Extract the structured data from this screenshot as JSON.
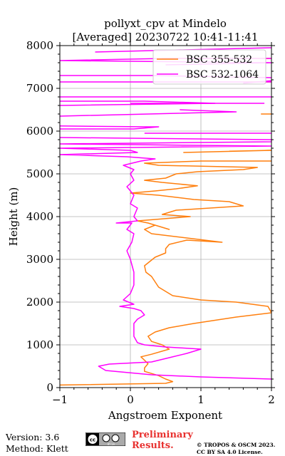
{
  "chart_data": {
    "type": "line",
    "title": "pollyxt_cpv at Mindelo",
    "subtitle": "[Averaged] 20230722 10:41-11:41",
    "xlabel": "Angstroem Exponent",
    "ylabel": "Height (m)",
    "xlim": [
      -1,
      2
    ],
    "ylim": [
      0,
      8000
    ],
    "xticks": [
      "-1",
      "0",
      "1",
      "2"
    ],
    "yticks": [
      "0",
      "1000",
      "2000",
      "3000",
      "4000",
      "5000",
      "6000",
      "7000",
      "8000"
    ],
    "grid": true,
    "legend_position": "top-right",
    "series": [
      {
        "name": "BSC 355-532",
        "color": "#ff7f0e",
        "points": [
          [
            -1.0,
            60
          ],
          [
            0.5,
            100
          ],
          [
            0.6,
            140
          ],
          [
            0.5,
            200
          ],
          [
            0.4,
            280
          ],
          [
            0.2,
            380
          ],
          [
            0.2,
            460
          ],
          [
            0.25,
            560
          ],
          [
            0.2,
            640
          ],
          [
            0.15,
            720
          ],
          [
            0.3,
            780
          ],
          [
            0.55,
            900
          ],
          [
            0.45,
            1000
          ],
          [
            0.3,
            1080
          ],
          [
            0.25,
            1200
          ],
          [
            0.35,
            1300
          ],
          [
            0.55,
            1400
          ],
          [
            0.9,
            1500
          ],
          [
            1.5,
            1650
          ],
          [
            2.0,
            1750
          ],
          [
            1.95,
            1900
          ],
          [
            1.5,
            2000
          ],
          [
            1.0,
            2050
          ],
          [
            0.6,
            2150
          ],
          [
            0.4,
            2350
          ],
          [
            0.3,
            2600
          ],
          [
            0.22,
            2700
          ],
          [
            0.2,
            2850
          ],
          [
            0.35,
            3050
          ],
          [
            0.5,
            3150
          ],
          [
            0.5,
            3250
          ],
          [
            0.55,
            3350
          ],
          [
            0.8,
            3450
          ],
          [
            1.3,
            3400
          ],
          [
            0.8,
            3500
          ],
          [
            0.3,
            3600
          ],
          [
            0.2,
            3700
          ],
          [
            0.35,
            3800
          ],
          [
            0.55,
            3700
          ],
          [
            0.25,
            3850
          ],
          [
            0.1,
            3900
          ],
          [
            0.85,
            4000
          ],
          [
            0.45,
            4050
          ],
          [
            0.65,
            4150
          ],
          [
            1.6,
            4250
          ],
          [
            1.4,
            4350
          ],
          [
            0.9,
            4400
          ],
          [
            0.4,
            4500
          ],
          [
            0.0,
            4550
          ],
          [
            0.35,
            4600
          ],
          [
            0.65,
            4650
          ],
          [
            0.95,
            4720
          ],
          [
            0.45,
            4800
          ],
          [
            0.2,
            4850
          ],
          [
            0.5,
            4900
          ],
          [
            0.65,
            5000
          ],
          [
            0.95,
            5050
          ],
          [
            1.6,
            5100
          ],
          [
            1.8,
            5150
          ],
          [
            0.4,
            5200
          ],
          [
            0.2,
            5250
          ],
          [
            1.0,
            5300
          ],
          [
            2.0,
            5300
          ]
        ],
        "segments": [
          [
            [
              0.75,
              5500
            ],
            [
              2.0,
              5550
            ],
            [
              1.4,
              5530
            ]
          ],
          [
            [
              0.45,
              7700
            ],
            [
              2.0,
              7700
            ]
          ],
          [
            [
              1.85,
              6400
            ],
            [
              2.0,
              6400
            ]
          ],
          [
            [
              1.6,
              7150
            ],
            [
              2.0,
              7150
            ]
          ]
        ]
      },
      {
        "name": "BSC 532-1064",
        "color": "#ff00ff",
        "points": [
          [
            2.0,
            200
          ],
          [
            1.0,
            250
          ],
          [
            0.3,
            300
          ],
          [
            -0.35,
            400
          ],
          [
            -0.45,
            500
          ],
          [
            -0.3,
            550
          ],
          [
            0.3,
            600
          ],
          [
            0.55,
            700
          ],
          [
            0.8,
            800
          ],
          [
            1.0,
            900
          ],
          [
            0.5,
            950
          ],
          [
            0.2,
            1000
          ],
          [
            0.1,
            1050
          ],
          [
            0.05,
            1200
          ],
          [
            0.05,
            1500
          ],
          [
            0.1,
            1600
          ],
          [
            0.2,
            1700
          ],
          [
            0.15,
            1800
          ],
          [
            0.05,
            1850
          ],
          [
            -0.15,
            1900
          ],
          [
            0.05,
            1950
          ],
          [
            -0.1,
            2050
          ],
          [
            0.0,
            2200
          ],
          [
            0.05,
            2400
          ],
          [
            0.05,
            2700
          ],
          [
            0.0,
            3000
          ],
          [
            -0.05,
            3200
          ],
          [
            0.02,
            3400
          ],
          [
            0.05,
            3600
          ],
          [
            -0.05,
            3700
          ],
          [
            0.02,
            3850
          ],
          [
            -0.2,
            3850
          ],
          [
            0.1,
            3900
          ],
          [
            0.05,
            4000
          ],
          [
            0.1,
            4200
          ],
          [
            0.0,
            4300
          ],
          [
            0.05,
            4500
          ],
          [
            -0.05,
            4700
          ],
          [
            0.05,
            4850
          ],
          [
            0.0,
            5000
          ],
          [
            0.05,
            5100
          ],
          [
            -0.1,
            5200
          ],
          [
            0.15,
            5300
          ],
          [
            0.35,
            5350
          ],
          [
            -0.05,
            5400
          ],
          [
            -1.0,
            5450
          ],
          [
            0.1,
            5500
          ],
          [
            0.0,
            5550
          ],
          [
            -1.0,
            5600
          ],
          [
            2.0,
            5650
          ],
          [
            -1.0,
            5700
          ],
          [
            2.0,
            5750
          ],
          [
            2.0,
            5800
          ],
          [
            -1.0,
            5850
          ]
        ],
        "segments": [
          [
            [
              0.2,
              5950
            ],
            [
              2.0,
              5950
            ]
          ],
          [
            [
              -1.0,
              6050
            ],
            [
              0.05,
              6050
            ],
            [
              0.4,
              6100
            ],
            [
              0.25,
              6100
            ],
            [
              -1.0,
              6120
            ]
          ],
          [
            [
              -1.0,
              6350
            ],
            [
              1.5,
              6450
            ],
            [
              0.7,
              6500
            ]
          ],
          [
            [
              -1.0,
              6600
            ],
            [
              1.2,
              6650
            ],
            [
              0.2,
              6700
            ],
            [
              -1.0,
              6700
            ]
          ],
          [
            [
              0.0,
              6650
            ],
            [
              1.9,
              6650
            ]
          ],
          [
            [
              -1.0,
              6800
            ],
            [
              2.0,
              6800
            ]
          ],
          [
            [
              -1.0,
              7150
            ],
            [
              2.0,
              7150
            ]
          ],
          [
            [
              -1.0,
              7300
            ],
            [
              0.3,
              7300
            ],
            [
              2.0,
              7250
            ]
          ],
          [
            [
              0.5,
              7550
            ],
            [
              2.0,
              7600
            ],
            [
              -1.0,
              7650
            ],
            [
              0.5,
              7700
            ],
            [
              2.0,
              7700
            ]
          ],
          [
            [
              -0.5,
              7850
            ],
            [
              2.0,
              7950
            ]
          ],
          [
            [
              1.6,
              7120
            ],
            [
              2.0,
              7180
            ]
          ]
        ]
      }
    ]
  },
  "footer": {
    "version": "Version: 3.6",
    "method": "Method: Klett",
    "preliminary_line1": "Preliminary",
    "preliminary_line2": "Results.",
    "copyright_line1": "© TROPOS & OSCM 2023.",
    "copyright_line2": "CC BY SA 4.0 License.",
    "badge_text": "BY SA"
  }
}
